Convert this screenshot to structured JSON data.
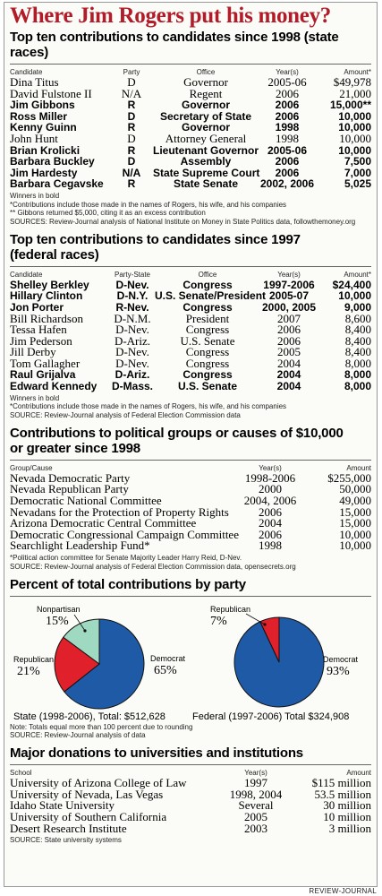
{
  "title": "Where Jim Rogers put his money?",
  "state_races": {
    "title": "Top ten contributions to candidates since 1998 (state races)",
    "headers": [
      "Candidate",
      "Party",
      "Office",
      "Year(s)",
      "Amount*"
    ],
    "rows": [
      {
        "candidate": "Dina Titus",
        "party": "D",
        "office": "Governor",
        "years": "2005-06",
        "amount": "$49,978",
        "winner": false
      },
      {
        "candidate": "David Fulstone II",
        "party": "N/A",
        "office": "Regent",
        "years": "2006",
        "amount": "21,000",
        "winner": false
      },
      {
        "candidate": "Jim Gibbons",
        "party": "R",
        "office": "Governor",
        "years": "2006",
        "amount": "15,000**",
        "winner": true
      },
      {
        "candidate": "Ross Miller",
        "party": "D",
        "office": "Secretary of State",
        "years": "2006",
        "amount": "10,000",
        "winner": true
      },
      {
        "candidate": "Kenny Guinn",
        "party": "R",
        "office": "Governor",
        "years": "1998",
        "amount": "10,000",
        "winner": true
      },
      {
        "candidate": "John Hunt",
        "party": "D",
        "office": "Attorney General",
        "years": "1998",
        "amount": "10,000",
        "winner": false
      },
      {
        "candidate": "Brian Krolicki",
        "party": "R",
        "office": "Lieutenant Governor",
        "years": "2005-06",
        "amount": "10,000",
        "winner": true
      },
      {
        "candidate": "Barbara Buckley",
        "party": "D",
        "office": "Assembly",
        "years": "2006",
        "amount": "7,500",
        "winner": true
      },
      {
        "candidate": "Jim Hardesty",
        "party": "N/A",
        "office": "State Supreme Court",
        "years": "2006",
        "amount": "7,000",
        "winner": true
      },
      {
        "candidate": "Barbara Cegavske",
        "party": "R",
        "office": "State Senate",
        "years": "2002, 2006",
        "amount": "5,025",
        "winner": true
      }
    ],
    "notes": [
      "Winners in bold",
      "*Contributions include those made in the names of Rogers, his wife, and his companies",
      "** Gibbons returned $5,000, citing it as an excess contribution"
    ],
    "source": "SOURCES: Review-Journal analysis of National Institute on Money in State Politics data, followthemoney.org"
  },
  "federal_races": {
    "title_line1": "Top ten contributions to candidates since 1997",
    "title_line2": "(federal races)",
    "headers": [
      "Candidate",
      "Party-State",
      "Office",
      "Year(s)",
      "Amount*"
    ],
    "rows": [
      {
        "candidate": "Shelley Berkley",
        "party": "D-Nev.",
        "office": "Congress",
        "years": "1997-2006",
        "amount": "$24,400",
        "winner": true
      },
      {
        "candidate": "Hillary Clinton",
        "party": "D-N.Y.",
        "office": "U.S. Senate/President",
        "years": "2005-07",
        "amount": "10,000",
        "winner": true
      },
      {
        "candidate": "Jon Porter",
        "party": "R-Nev.",
        "office": "Congress",
        "years": "2000, 2005",
        "amount": "9,000",
        "winner": true
      },
      {
        "candidate": "Bill Richardson",
        "party": "D-N.M.",
        "office": "President",
        "years": "2007",
        "amount": "8,600",
        "winner": false
      },
      {
        "candidate": "Tessa Hafen",
        "party": "D-Nev.",
        "office": "Congress",
        "years": "2006",
        "amount": "8,400",
        "winner": false
      },
      {
        "candidate": "Jim Pederson",
        "party": "D-Ariz.",
        "office": "U.S. Senate",
        "years": "2006",
        "amount": "8,400",
        "winner": false
      },
      {
        "candidate": "Jill Derby",
        "party": "D-Nev.",
        "office": "Congress",
        "years": "2005",
        "amount": "8,400",
        "winner": false
      },
      {
        "candidate": "Tom Gallagher",
        "party": "D-Nev.",
        "office": "Congress",
        "years": "2004",
        "amount": "8,000",
        "winner": false
      },
      {
        "candidate": "Raul Grijalva",
        "party": "D-Ariz.",
        "office": "Congress",
        "years": "2004",
        "amount": "8,000",
        "winner": true
      },
      {
        "candidate": "Edward Kennedy",
        "party": "D-Mass.",
        "office": "U.S. Senate",
        "years": "2004",
        "amount": "8,000",
        "winner": true
      }
    ],
    "notes": [
      "Winners in bold",
      "*Contributions include those made in the names of Rogers, his wife, and his companies"
    ],
    "source": "SOURCE: Review-Journal analysis of Federal Election Commission data"
  },
  "groups": {
    "title_line1": "Contributions to political groups or causes of $10,000",
    "title_line2": "or greater since 1998",
    "headers": [
      "Group/Cause",
      "Year(s)",
      "Amount"
    ],
    "rows": [
      {
        "name": "Nevada Democratic Party",
        "years": "1998-2006",
        "amount": "$255,000"
      },
      {
        "name": "Nevada Republican Party",
        "years": "2000",
        "amount": "50,000"
      },
      {
        "name": "Democratic National Committee",
        "years": "2004, 2006",
        "amount": "49,000"
      },
      {
        "name": "Nevadans for the Protection of Property Rights",
        "years": "2006",
        "amount": "15,000"
      },
      {
        "name": "Arizona Democratic Central Committee",
        "years": "2004",
        "amount": "15,000"
      },
      {
        "name": "Democratic Congressional Campaign Committee",
        "years": "2006",
        "amount": "10,000"
      },
      {
        "name": "Searchlight Leadership Fund*",
        "years": "1998",
        "amount": "10,000"
      }
    ],
    "notes": [
      "*Political action committee for Senate Majority Leader Harry Reid, D-Nev."
    ],
    "source": "SOURCE: Review-Journal analysis of Federal Election Commission data, opensecrets.org"
  },
  "pie_section": {
    "title": "Percent of total contributions by party",
    "note": "Note: Totals equal more than 100 percent due to rounding",
    "source": "SOURCE: Review-Journal analysis of data"
  },
  "colors": {
    "democrat": "#1f5aa6",
    "republican": "#e0202a",
    "nonpartisan": "#9fd9c2",
    "title_red": "#b21b27"
  },
  "chart_data": [
    {
      "type": "pie",
      "caption": "State (1998-2006), Total: $512,628",
      "slices": [
        {
          "label": "Democrat",
          "pct_label": "65%",
          "value": 65
        },
        {
          "label": "Republican",
          "pct_label": "21%",
          "value": 21
        },
        {
          "label": "Nonpartisan",
          "pct_label": "15%",
          "value": 15
        }
      ]
    },
    {
      "type": "pie",
      "caption": "Federal (1997-2006) Total $324,908",
      "slices": [
        {
          "label": "Democrat",
          "pct_label": "93%",
          "value": 93
        },
        {
          "label": "Republican",
          "pct_label": "7%",
          "value": 7
        }
      ]
    }
  ],
  "universities": {
    "title": "Major donations to universities and institutions",
    "headers": [
      "School",
      "Year(s)",
      "Amount"
    ],
    "rows": [
      {
        "name": "University of Arizona College of Law",
        "years": "1997",
        "amount": "$115 million"
      },
      {
        "name": "University of Nevada, Las Vegas",
        "years": "1998, 2004",
        "amount": "53.5 million"
      },
      {
        "name": "Idaho State University",
        "years": "Several",
        "amount": "30 million"
      },
      {
        "name": "University of Southern California",
        "years": "2005",
        "amount": "10 million"
      },
      {
        "name": "Desert Research Institute",
        "years": "2003",
        "amount": "3 million"
      }
    ],
    "source": "SOURCE: State university systems"
  },
  "footer": "REVIEW-JOURNAL"
}
